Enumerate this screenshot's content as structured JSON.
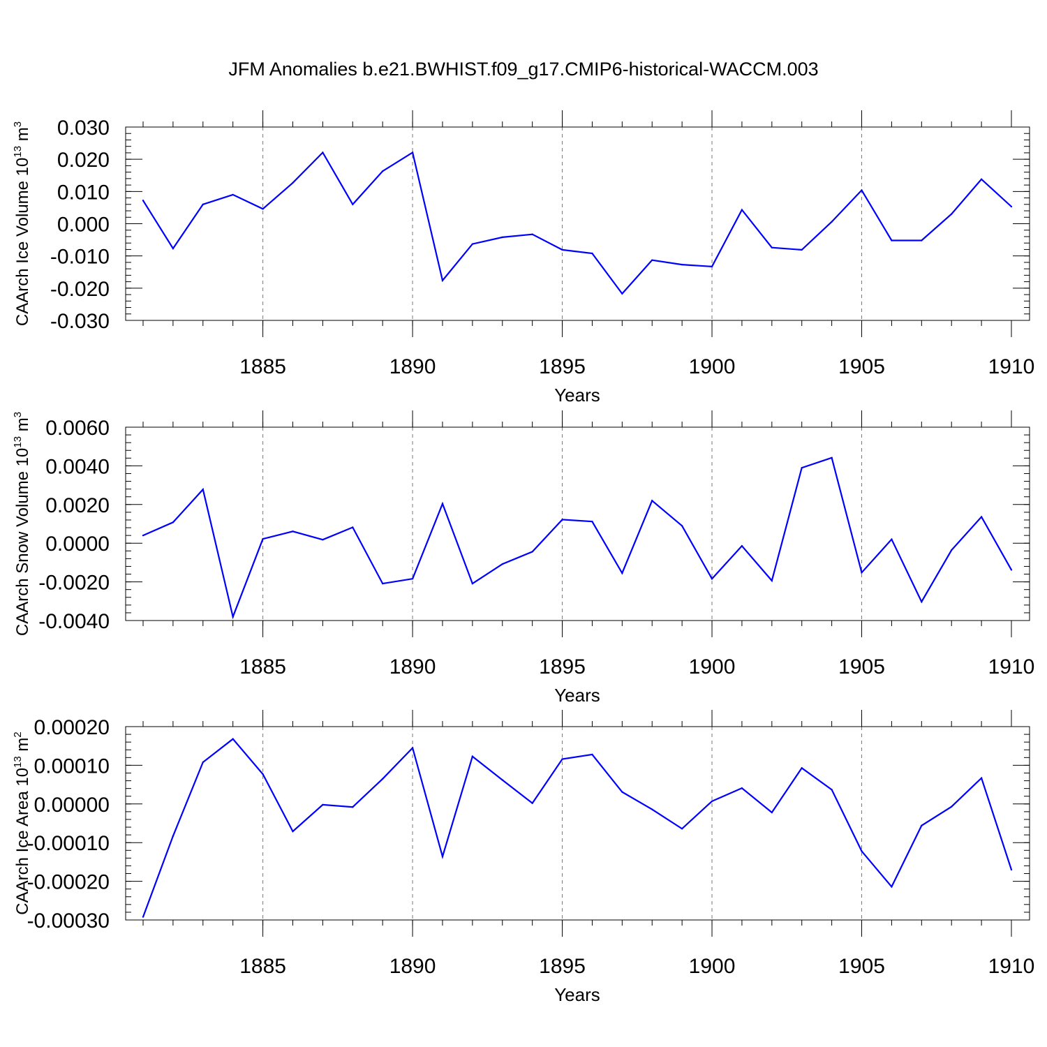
{
  "figure": {
    "title": "JFM Anomalies b.e21.BWHIST.f09_g17.CMIP6-historical-WACCM.003"
  },
  "chart_data": [
    {
      "type": "line",
      "xlabel": "Years",
      "ylabel_main": "CAArch Ice Volume 10",
      "ylabel_exp": "13",
      "ylabel_unit": " m",
      "ylabel_unit_exp": "3",
      "xlim": [
        1881,
        1910
      ],
      "ylim": [
        -0.03,
        0.03
      ],
      "x_ticks": [
        1885,
        1890,
        1895,
        1900,
        1905,
        1910
      ],
      "x_tick_labels": [
        "1885",
        "1890",
        "1895",
        "1900",
        "1905",
        "1910"
      ],
      "y_ticks": [
        -0.03,
        -0.02,
        -0.01,
        0.0,
        0.01,
        0.02,
        0.03
      ],
      "y_tick_labels": [
        "-0.030",
        "-0.020",
        "-0.010",
        "0.000",
        "0.010",
        "0.020",
        "0.030"
      ],
      "grid": "vertical dashed at labeled years",
      "line_color": "#0000ff",
      "x": [
        1881,
        1882,
        1883,
        1884,
        1885,
        1886,
        1887,
        1888,
        1889,
        1890,
        1891,
        1892,
        1893,
        1894,
        1895,
        1896,
        1897,
        1898,
        1899,
        1900,
        1901,
        1902,
        1903,
        1904,
        1905,
        1906,
        1907,
        1908,
        1909,
        1910
      ],
      "values": [
        0.0072,
        -0.0077,
        0.006,
        0.009,
        0.0046,
        0.0127,
        0.0221,
        0.006,
        0.0163,
        0.0221,
        -0.0176,
        -0.0063,
        -0.0042,
        -0.0033,
        -0.0081,
        -0.0092,
        -0.0217,
        -0.0113,
        -0.0127,
        -0.0133,
        0.0043,
        -0.0074,
        -0.0081,
        0.0006,
        0.0104,
        -0.0052,
        -0.0052,
        0.003,
        0.0138,
        0.0053
      ]
    },
    {
      "type": "line",
      "xlabel": "Years",
      "ylabel_main": "CAArch Snow Volume 10",
      "ylabel_exp": "13",
      "ylabel_unit": " m",
      "ylabel_unit_exp": "3",
      "xlim": [
        1881,
        1910
      ],
      "ylim": [
        -0.004,
        0.006
      ],
      "x_ticks": [
        1885,
        1890,
        1895,
        1900,
        1905,
        1910
      ],
      "x_tick_labels": [
        "1885",
        "1890",
        "1895",
        "1900",
        "1905",
        "1910"
      ],
      "y_ticks": [
        -0.004,
        -0.002,
        0.0,
        0.002,
        0.004,
        0.006
      ],
      "y_tick_labels": [
        "-0.0040",
        "-0.0020",
        "0.0000",
        "0.0020",
        "0.0040",
        "0.0060"
      ],
      "grid": "vertical dashed at labeled years",
      "line_color": "#0000ff",
      "x": [
        1881,
        1882,
        1883,
        1884,
        1885,
        1886,
        1887,
        1888,
        1889,
        1890,
        1891,
        1892,
        1893,
        1894,
        1895,
        1896,
        1897,
        1898,
        1899,
        1900,
        1901,
        1902,
        1903,
        1904,
        1905,
        1906,
        1907,
        1908,
        1909,
        1910
      ],
      "values": [
        0.0004,
        0.00108,
        0.00278,
        -0.00381,
        0.00022,
        0.00061,
        0.00018,
        0.00082,
        -0.00209,
        -0.00184,
        0.00204,
        -0.00209,
        -0.00108,
        -0.00044,
        0.00122,
        0.00112,
        -0.00155,
        0.0022,
        0.0009,
        -0.00184,
        -0.00014,
        -0.00194,
        0.0039,
        0.00442,
        -0.00152,
        0.0002,
        -0.00303,
        -0.00036,
        0.00136,
        -0.00138
      ]
    },
    {
      "type": "line",
      "xlabel": "Years",
      "ylabel_main": "CAArch Ice Area 10",
      "ylabel_exp": "13",
      "ylabel_unit": " m",
      "ylabel_unit_exp": "2",
      "xlim": [
        1881,
        1910
      ],
      "ylim": [
        -0.0003,
        0.0002
      ],
      "x_ticks": [
        1885,
        1890,
        1895,
        1900,
        1905,
        1910
      ],
      "x_tick_labels": [
        "1885",
        "1890",
        "1895",
        "1900",
        "1905",
        "1910"
      ],
      "y_ticks": [
        -0.0003,
        -0.0002,
        -0.0001,
        0.0,
        0.0001,
        0.0002
      ],
      "y_tick_labels": [
        "-0.00030",
        "-0.00020",
        "-0.00010",
        "0.00000",
        "0.00010",
        "0.00020"
      ],
      "grid": "vertical dashed at labeled years",
      "line_color": "#0000ff",
      "x": [
        1881,
        1882,
        1883,
        1884,
        1885,
        1886,
        1887,
        1888,
        1889,
        1890,
        1891,
        1892,
        1893,
        1894,
        1895,
        1896,
        1897,
        1898,
        1899,
        1900,
        1901,
        1902,
        1903,
        1904,
        1905,
        1906,
        1907,
        1908,
        1909,
        1910
      ],
      "values": [
        -0.000292,
        -8.3e-05,
        0.000108,
        0.000168,
        7.7e-05,
        -7.1e-05,
        -2e-06,
        -8e-06,
        6.5e-05,
        0.000145,
        -0.000136,
        0.000123,
        6.2e-05,
        2e-06,
        0.000116,
        0.000128,
        3.1e-05,
        -1.4e-05,
        -6.4e-05,
        7e-06,
        4.1e-05,
        -2.2e-05,
        9.3e-05,
        3.7e-05,
        -0.000122,
        -0.000214,
        -5.6e-05,
        -7e-06,
        6.7e-05,
        -0.00017
      ]
    }
  ]
}
